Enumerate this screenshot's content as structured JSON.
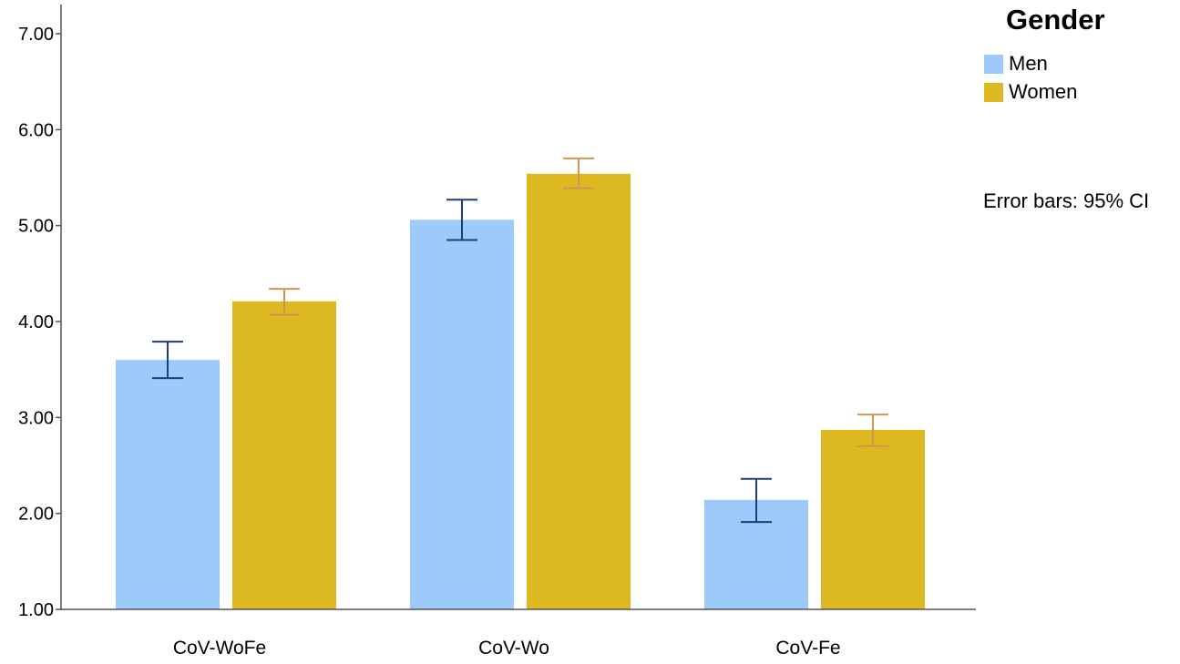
{
  "chart_data": {
    "type": "bar",
    "categories": [
      "CoV-WoFe",
      "CoV-Wo",
      "CoV-Fe"
    ],
    "series": [
      {
        "name": "Men",
        "color": "#9ccbfb",
        "error_color": "#1f3d7a",
        "values": [
          3.6,
          5.06,
          2.14
        ],
        "ci_low": [
          3.41,
          4.85,
          1.91
        ],
        "ci_high": [
          3.79,
          5.27,
          2.36
        ]
      },
      {
        "name": "Women",
        "color": "#ddb921",
        "error_color": "#d0964e",
        "values": [
          4.21,
          5.54,
          2.87
        ],
        "ci_low": [
          4.07,
          5.39,
          2.7
        ],
        "ci_high": [
          4.34,
          5.7,
          3.03
        ]
      }
    ],
    "ylim": [
      1.0,
      7.0
    ],
    "yticks": [
      "1.00",
      "2.00",
      "3.00",
      "4.00",
      "5.00",
      "6.00",
      "7.00"
    ],
    "legend": {
      "title": "Gender",
      "placement": "top-right"
    },
    "note": "Error bars: 95% CI",
    "grid": false
  }
}
